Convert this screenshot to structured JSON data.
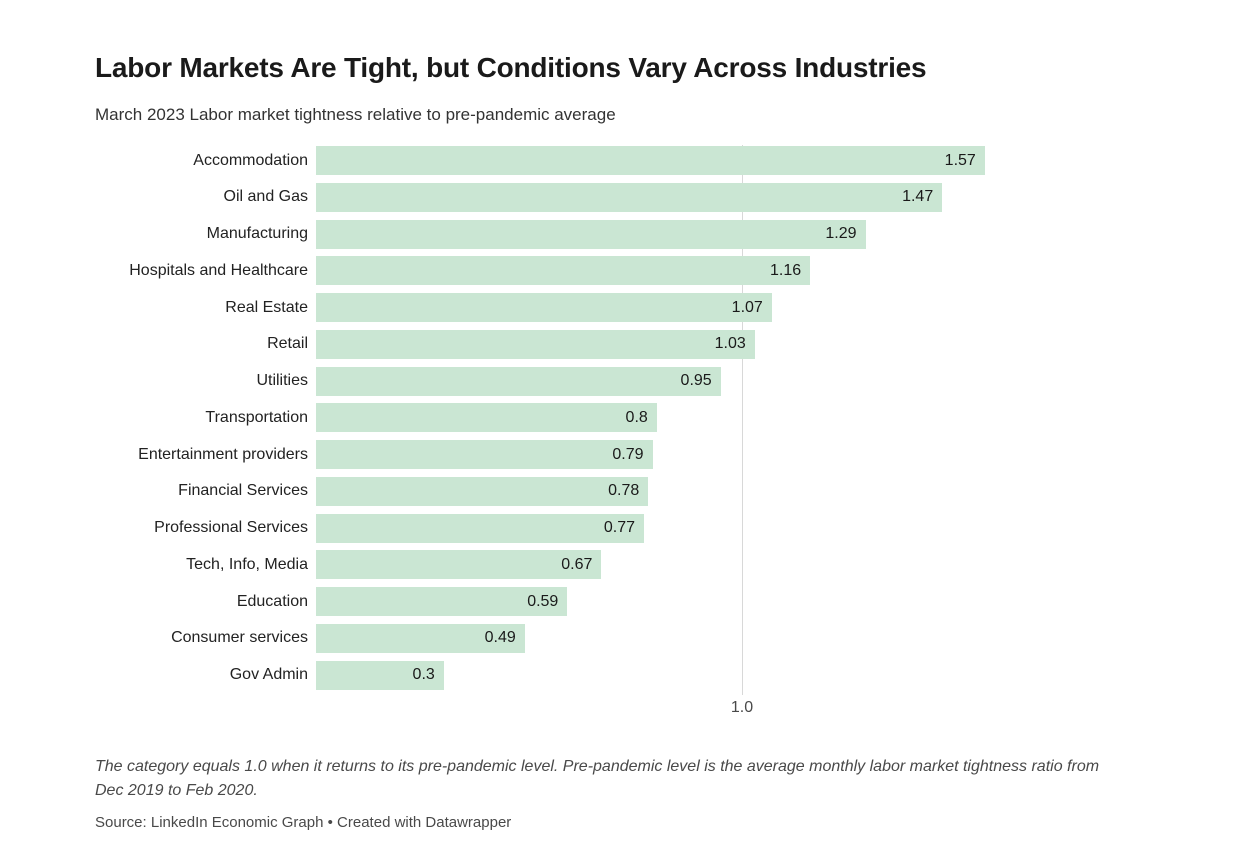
{
  "header": {
    "title": "Labor Markets Are Tight, but Conditions Vary Across Industries",
    "subtitle": "March 2023 Labor market tightness relative to pre-pandemic average"
  },
  "chart_data": {
    "type": "bar",
    "orientation": "horizontal",
    "title": "Labor Markets Are Tight, but Conditions Vary Across Industries",
    "subtitle": "March 2023 Labor market tightness relative to pre-pandemic average",
    "categories": [
      "Accommodation",
      "Oil and Gas",
      "Manufacturing",
      "Hospitals and Healthcare",
      "Real Estate",
      "Retail",
      "Utilities",
      "Transportation",
      "Entertainment providers",
      "Financial Services",
      "Professional Services",
      "Tech, Info, Media",
      "Education",
      "Consumer services",
      "Gov Admin"
    ],
    "values": [
      1.57,
      1.47,
      1.29,
      1.16,
      1.07,
      1.03,
      0.95,
      0.8,
      0.79,
      0.78,
      0.77,
      0.67,
      0.59,
      0.49,
      0.3
    ],
    "value_labels": [
      "1.57",
      "1.47",
      "1.29",
      "1.16",
      "1.07",
      "1.03",
      "0.95",
      "0.8",
      "0.79",
      "0.78",
      "0.77",
      "0.67",
      "0.59",
      "0.49",
      "0.3"
    ],
    "xlabel": "",
    "ylabel": "",
    "xlim": [
      0,
      1.6
    ],
    "grid": "single vertical reference line",
    "legend_position": "none",
    "reference_line": {
      "value": 1.0,
      "label": "1.0"
    },
    "bar_color": "#cae6d3"
  },
  "footer": {
    "note": "The category equals 1.0 when it returns to its pre-pandemic level. Pre-pandemic level is the average monthly labor market tightness ratio from Dec 2019 to Feb 2020.",
    "source": "Source: LinkedIn Economic Graph • Created with Datawrapper"
  }
}
